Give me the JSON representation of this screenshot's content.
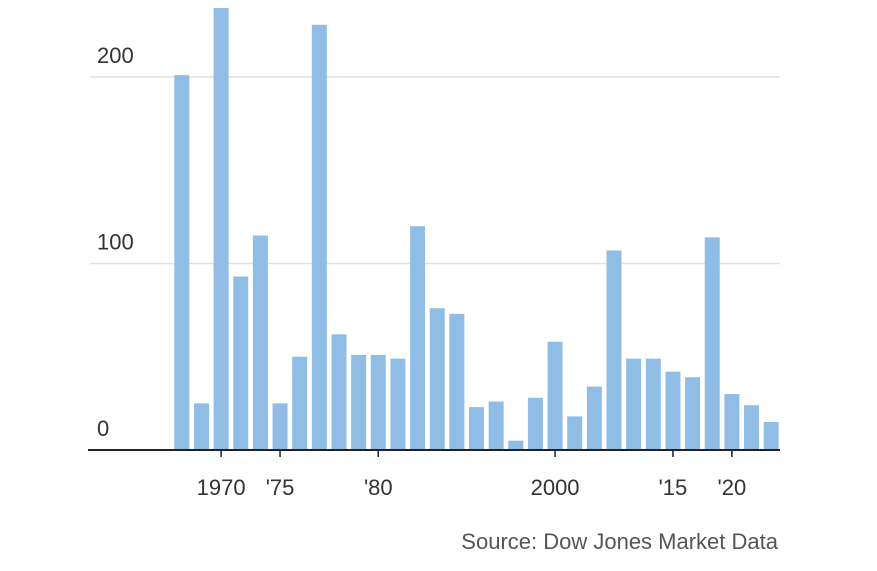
{
  "chart_data": {
    "type": "bar",
    "categories": [
      null,
      null,
      "1970",
      null,
      null,
      "'75",
      null,
      null,
      null,
      null,
      "'80",
      null,
      null,
      null,
      null,
      null,
      null,
      null,
      null,
      "2000",
      null,
      null,
      null,
      null,
      null,
      "'15",
      null,
      null,
      "'20",
      null,
      null
    ],
    "values": [
      201,
      25,
      237,
      93,
      115,
      25,
      50,
      228,
      62,
      51,
      51,
      49,
      120,
      76,
      73,
      23,
      26,
      5,
      28,
      58,
      18,
      34,
      107,
      49,
      49,
      42,
      39,
      114,
      30,
      24,
      15
    ],
    "color": "#8fbde6",
    "ylim": [
      0,
      240
    ],
    "yticks": [
      0,
      100,
      200
    ],
    "grid": true,
    "source": "Source: Dow Jones Market Data"
  }
}
